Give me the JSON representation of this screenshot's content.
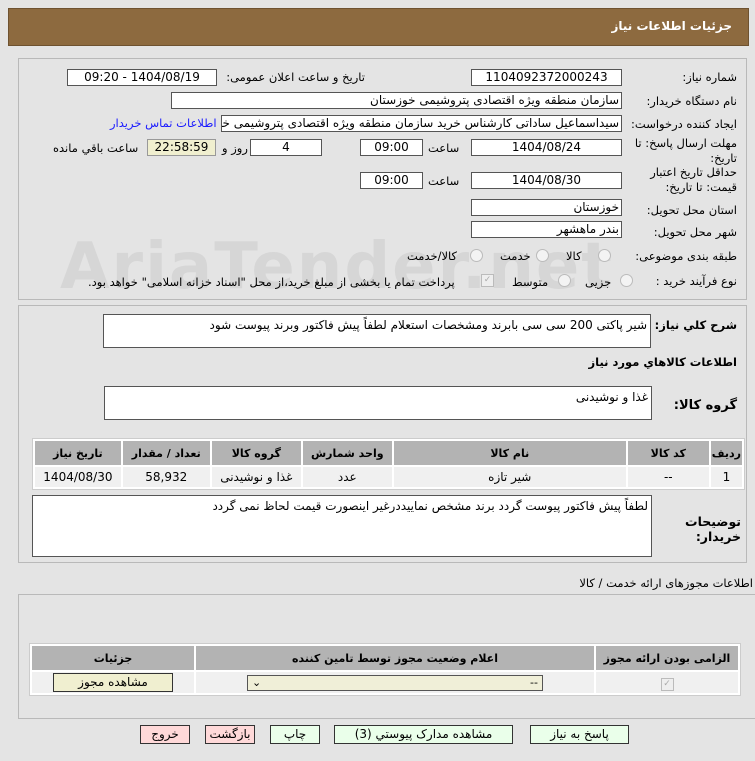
{
  "header": {
    "title": "جزئيات اطلاعات نياز"
  },
  "watermark": "AriaTender.net",
  "form": {
    "need_number_label": "شماره نیاز:",
    "need_number": "1104092372000243",
    "announce_label": "تاریخ و ساعت اعلان عمومی:",
    "announce_value": "1404/08/19 - 09:20",
    "buyer_label": "نام دستگاه خریدار:",
    "buyer_value": "سازمان منطقه ویژه اقتصادی پتروشیمی خوزستان",
    "creator_label": "ایجاد کننده درخواست:",
    "creator_value": "سیداسماعیل ساداتی کارشناس خرید سازمان منطقه ویژه اقتصادی پتروشیمی خوزستان",
    "contact_link": "اطلاعات تماس خریدار",
    "deadline_label": "مهلت ارسال پاسخ: تا تاریخ:",
    "deadline_date": "1404/08/24",
    "time_label": "ساعت",
    "deadline_time": "09:00",
    "days": "4",
    "days_label": "روز و",
    "remaining": "22:58:59",
    "remaining_label": "ساعت باقي مانده",
    "validity_label": "حداقل تاریخ اعتبار قیمت: تا تاریخ:",
    "validity_date": "1404/08/30",
    "validity_time": "09:00",
    "province_label": "استان محل تحویل:",
    "province": "خوزستان",
    "city_label": "شهر محل تحویل:",
    "city": "بندر ماهشهر",
    "category_label": "طبقه بندی موضوعی:",
    "category_options": [
      "کالا",
      "خدمت",
      "کالا/خدمت"
    ],
    "category_selected": "کالا",
    "process_label": "نوع فرآیند خرید :",
    "process_options": [
      "جزیی",
      "متوسط"
    ],
    "payment_note": "پرداخت تمام یا بخشی از مبلغ خرید،از محل \"اسناد خزانه اسلامی\" خواهد بود."
  },
  "description": {
    "label": "شرح كلي نياز:",
    "value": "شیر پاکتی 200 سی سی بابرند ومشخصات استعلام لطفاً پیش فاکتور وبرند پیوست شود"
  },
  "goods": {
    "heading": "اطلاعات كالاهاي مورد نياز",
    "group_label": "گروه کالا:",
    "group_value": "غذا و نوشیدنی",
    "columns": [
      "ردیف",
      "کد کالا",
      "نام کالا",
      "واحد شمارش",
      "گروه کالا",
      "تعداد / مقدار",
      "تاریخ نیاز"
    ],
    "rows": [
      [
        "1",
        "--",
        "شیر تازه",
        "عدد",
        "غذا و نوشیدنی",
        "58,932",
        "1404/08/30"
      ]
    ]
  },
  "buyer_notes": {
    "label": "توضیحات خریدار:",
    "value": "لطفاً پیش فاکتور پیوست گردد برند مشخص نماییددرغیر اینصورت قیمت لحاظ نمی گردد"
  },
  "permits": {
    "heading": "اطلاعات مجوزهای ارائه خدمت / کالا",
    "columns": [
      "الزامی بودن ارائه مجوز",
      "اعلام وضعیت مجوز توسط تامین کننده",
      "جزئیات"
    ],
    "select_value": "--",
    "view_button": "مشاهده مجوز"
  },
  "buttons": {
    "reply": "پاسخ به نیاز",
    "attachments": "مشاهده مدارک پیوستي (3)",
    "print": "چاپ",
    "back": "بازگشت",
    "exit": "خروج"
  },
  "colors": {
    "header": "#8d6a3f",
    "remaining_bg": "#f0efcf",
    "green_btn": "#eaffea",
    "red_btn": "#ffd9d9",
    "link": "#1a1aff"
  }
}
